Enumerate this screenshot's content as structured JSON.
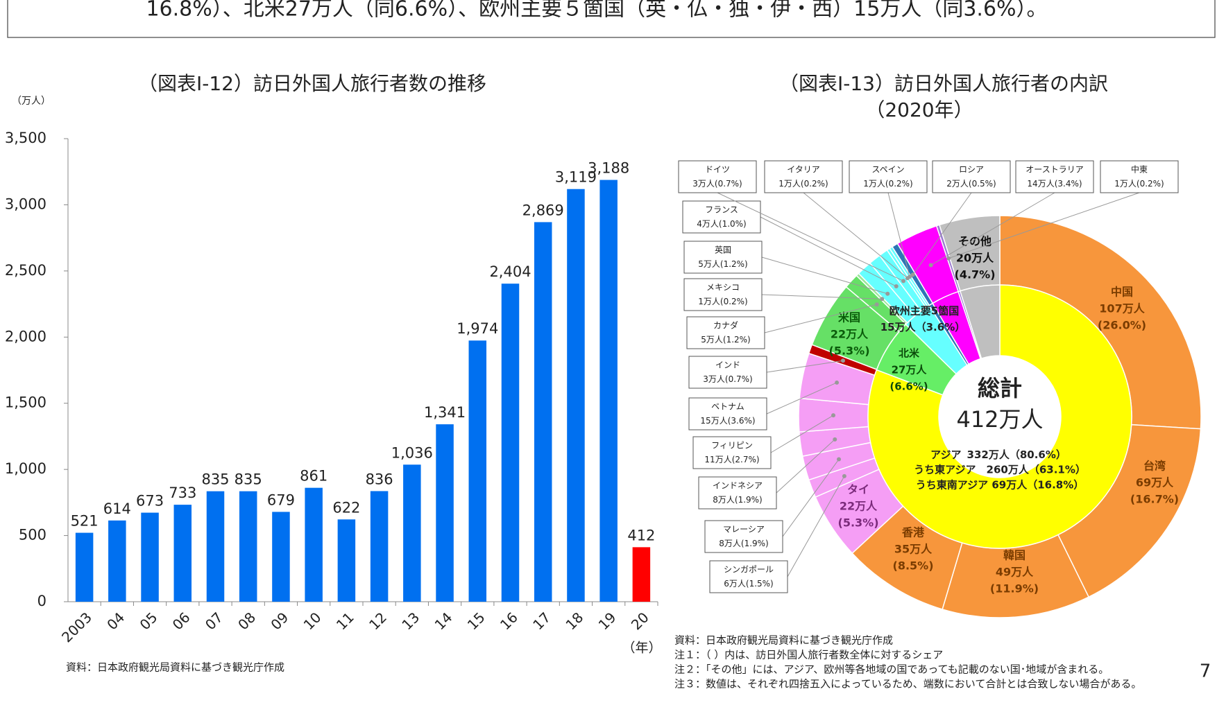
{
  "top_text": "16.8%）、北米27万人（同6.6%）、欧州主要５箇国（英・仏・独・伊・西）15万人（同3.6%）。",
  "page_number": "7",
  "chart_data": [
    {
      "type": "bar",
      "title": "（図表Ⅰ-12）訪日外国人旅行者数の推移",
      "y_unit": "（万人）",
      "x_unit": "（年）",
      "categories": [
        "2003",
        "04",
        "05",
        "06",
        "07",
        "08",
        "09",
        "10",
        "11",
        "12",
        "13",
        "14",
        "15",
        "16",
        "17",
        "18",
        "19",
        "20"
      ],
      "values": [
        521,
        614,
        673,
        733,
        835,
        835,
        679,
        861,
        622,
        836,
        1036,
        1341,
        1974,
        2404,
        2869,
        3119,
        3188,
        412
      ],
      "value_labels": [
        "521",
        "614",
        "673",
        "733",
        "835",
        "835",
        "679",
        "861",
        "622",
        "836",
        "1,036",
        "1,341",
        "1,974",
        "2,404",
        "2,869",
        "3,119",
        "3,188",
        "412"
      ],
      "colors": [
        "#0070f0",
        "#0070f0",
        "#0070f0",
        "#0070f0",
        "#0070f0",
        "#0070f0",
        "#0070f0",
        "#0070f0",
        "#0070f0",
        "#0070f0",
        "#0070f0",
        "#0070f0",
        "#0070f0",
        "#0070f0",
        "#0070f0",
        "#0070f0",
        "#0070f0",
        "#ff0000"
      ],
      "ylim": [
        0,
        3500
      ],
      "yticks": [
        0,
        500,
        {
          "value": 1000,
          "label": "1,000"
        },
        {
          "value": 1500,
          "label": "1,500"
        },
        {
          "value": 2000,
          "label": "2,000"
        },
        {
          "value": 2500,
          "label": "2,500"
        },
        {
          "value": 3000,
          "label": "3,000"
        },
        {
          "value": 3500,
          "label": "3,500"
        }
      ],
      "source": "資料：日本政府観光局資料に基づき観光庁作成"
    },
    {
      "type": "donut",
      "title": "（図表Ⅰ-13）訪日外国人旅行者の内訳",
      "subtitle": "（2020年）",
      "center_title": "総計",
      "center_label": "412万人",
      "outer": {
        "labels": [
          "中国",
          "台湾",
          "韓国",
          "香港",
          "タイ",
          "シンガポール",
          "マレーシア",
          "インドネシア",
          "フィリピン",
          "ベトナム",
          "インド",
          "米国",
          "カナダ",
          "メキシコ",
          "英国",
          "フランス",
          "ドイツ",
          "イタリア",
          "スペイン",
          "ロシア",
          "オーストラリア",
          "中東",
          "その他"
        ],
        "values": [
          107,
          69,
          49,
          35,
          22,
          6,
          8,
          8,
          11,
          15,
          3,
          22,
          5,
          1,
          5,
          4,
          3,
          1,
          1,
          2,
          14,
          1,
          20
        ],
        "value_labels": [
          "107万人",
          "69万人",
          "49万人",
          "35万人",
          "22万人",
          "6万人",
          "8万人",
          "8万人",
          "11万人",
          "15万人",
          "3万人",
          "22万人",
          "5万人",
          "1万人",
          "5万人",
          "4万人",
          "3万人",
          "1万人",
          "1万人",
          "2万人",
          "14万人",
          "1万人",
          "20万人"
        ],
        "share_labels": [
          "(26.0%)",
          "(16.7%)",
          "(11.9%)",
          "(8.5%)",
          "(5.3%)",
          "(1.5%)",
          "(1.9%)",
          "(1.9%)",
          "(2.7%)",
          "(3.6%)",
          "(0.7%)",
          "(5.3%)",
          "(1.2%)",
          "(0.2%)",
          "(1.2%)",
          "(1.0%)",
          "(0.7%)",
          "(0.2%)",
          "(0.2%)",
          "(0.5%)",
          "(3.4%)",
          "(0.2%)",
          "(4.7%)"
        ],
        "colors": [
          "#f7963c",
          "#f7963c",
          "#f7963c",
          "#f7963c",
          "#f59ef5",
          "#f59ef5",
          "#f59ef5",
          "#f59ef5",
          "#f59ef5",
          "#f59ef5",
          "#c00000",
          "#66e066",
          "#66e066",
          "#9be79b",
          "#66ffff",
          "#66ffff",
          "#66ffff",
          "#66ffff",
          "#66ffff",
          "#2e75b6",
          "#ff00ff",
          "#9b7bd0",
          "#bfbfbf"
        ]
      },
      "inner": {
        "labels": [
          "アジア",
          "北米",
          "欧州主要5箇国"
        ],
        "values": [
          332,
          27,
          15
        ],
        "value_labels": [
          "332万人",
          "27万人",
          "15万人"
        ],
        "share_labels": [
          "（80.6%）",
          "(6.6%)",
          "（3.6%）"
        ],
        "colors": [
          "#ffff00",
          "#66ee66",
          "#66ffff"
        ]
      },
      "asia_breakdown": [
        "うち東アジア　260万人（63.1%）",
        "うち東南アジア 69万人（16.8%）"
      ],
      "notes": [
        "資料：日本政府観光局資料に基づき観光庁作成",
        "注１：（ ）内は、訪日外国人旅行者数全体に対するシェア",
        "注２：「その他」には、アジア、欧州等各地域の国であっても記載のない国･地域が含まれる。",
        "注３：数値は、それぞれ四捨五入によっているため、端数において合計とは合致しない場合がある。"
      ]
    }
  ]
}
